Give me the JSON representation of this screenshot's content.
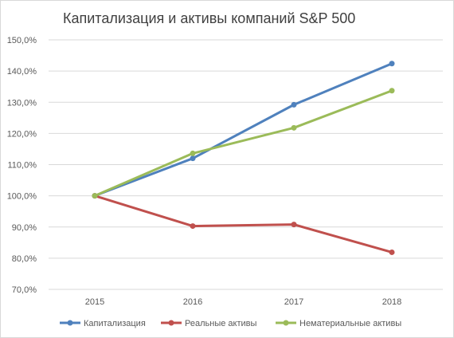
{
  "chart_data": {
    "type": "line",
    "title": "Капитализация и активы компаний S&P 500",
    "categories": [
      "2015",
      "2016",
      "2017",
      "2018"
    ],
    "ylim": [
      70,
      150
    ],
    "yticks": [
      70,
      80,
      90,
      100,
      110,
      120,
      130,
      140,
      150
    ],
    "ytick_labels": [
      "70,0%",
      "80,0%",
      "90,0%",
      "100,0%",
      "110,0%",
      "120,0%",
      "130,0%",
      "140,0%",
      "150,0%"
    ],
    "grid": true,
    "legend_position": "bottom",
    "series": [
      {
        "name": "Капитализация",
        "color": "#4F81BD",
        "values": [
          100.0,
          112.0,
          129.2,
          142.4
        ]
      },
      {
        "name": "Реальные активы",
        "color": "#C0504D",
        "values": [
          100.0,
          90.3,
          90.8,
          81.9
        ]
      },
      {
        "name": "Нематериальные активы",
        "color": "#9BBB59",
        "values": [
          100.0,
          113.6,
          121.8,
          133.7
        ]
      }
    ]
  }
}
